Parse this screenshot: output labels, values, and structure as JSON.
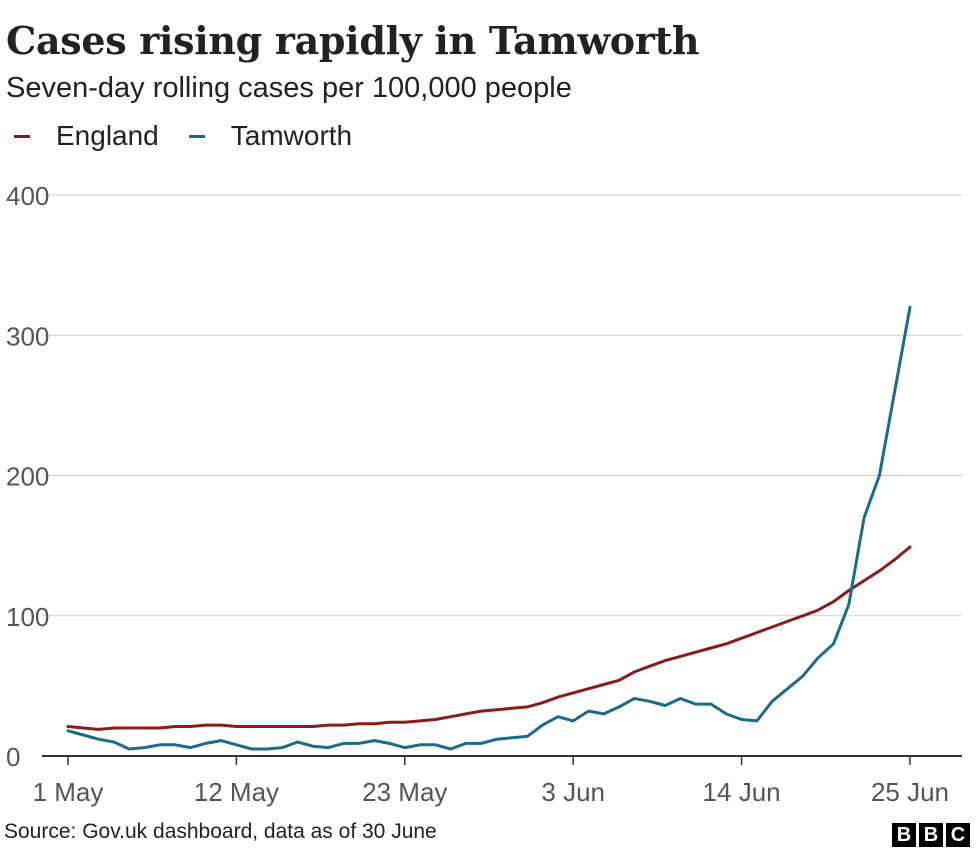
{
  "chart_data": {
    "type": "line",
    "title": "Cases rising rapidly in Tamworth",
    "subtitle": "Seven-day rolling cases per 100,000 people",
    "ylim": [
      0,
      400
    ],
    "yticks": [
      0,
      100,
      200,
      300,
      400
    ],
    "x_start": "1 May",
    "x_end": "25 Jun",
    "xtick_labels": [
      "1 May",
      "12 May",
      "23 May",
      "3 Jun",
      "14 Jun",
      "25 Jun"
    ],
    "xtick_days": [
      0,
      11,
      22,
      33,
      44,
      55
    ],
    "grid": true,
    "legend_position": "top-left",
    "series": [
      {
        "name": "England",
        "color": "#8b1c1c",
        "values": [
          21,
          20,
          19,
          20,
          20,
          20,
          20,
          21,
          21,
          22,
          22,
          21,
          21,
          21,
          21,
          21,
          21,
          22,
          22,
          23,
          23,
          24,
          24,
          25,
          26,
          28,
          30,
          32,
          33,
          34,
          35,
          38,
          42,
          45,
          48,
          51,
          54,
          60,
          64,
          68,
          71,
          74,
          77,
          80,
          84,
          88,
          92,
          96,
          100,
          104,
          110,
          118,
          125,
          132,
          140,
          149
        ]
      },
      {
        "name": "Tamworth",
        "color": "#1b6b8a",
        "values": [
          18,
          15,
          12,
          10,
          5,
          6,
          8,
          8,
          6,
          9,
          11,
          8,
          5,
          5,
          6,
          10,
          7,
          6,
          9,
          9,
          11,
          9,
          6,
          8,
          8,
          5,
          9,
          9,
          12,
          13,
          14,
          22,
          28,
          25,
          32,
          30,
          35,
          41,
          39,
          36,
          41,
          37,
          37,
          30,
          26,
          25,
          39,
          48,
          57,
          70,
          80,
          108,
          170,
          200,
          260,
          320
        ]
      }
    ]
  },
  "source": "Source: Gov.uk dashboard, data as of 30 June",
  "logo": [
    "B",
    "B",
    "C"
  ]
}
